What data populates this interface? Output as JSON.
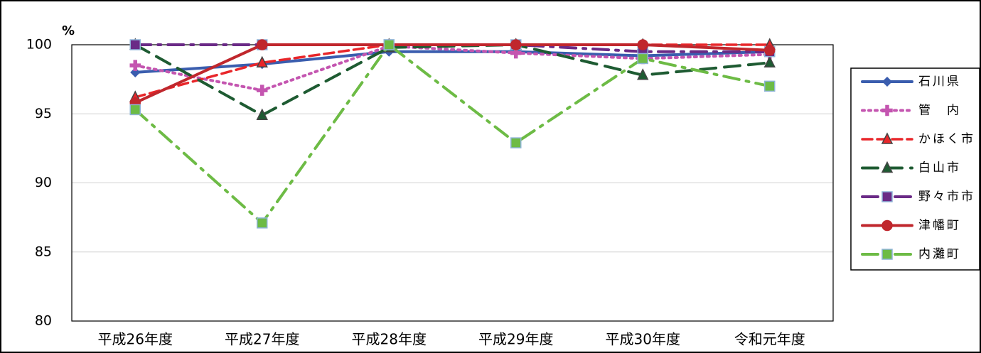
{
  "chart_data": {
    "type": "line",
    "y_label": "%",
    "categories": [
      "平成26年度",
      "平成27年度",
      "平成28年度",
      "平成29年度",
      "平成30年度",
      "令和元年度"
    ],
    "ylim": [
      80,
      100
    ],
    "yticks": [
      80,
      85,
      90,
      95,
      100
    ],
    "grid": true,
    "legend": "right",
    "series": [
      {
        "name": "石川県",
        "color": "#3a5dae",
        "dash": "solid",
        "marker": "diamond",
        "values": [
          98.0,
          98.6,
          99.5,
          99.5,
          99.2,
          99.5
        ]
      },
      {
        "name": "管　内",
        "color": "#c455b0",
        "dash": "dot",
        "marker": "plus",
        "values": [
          98.5,
          96.7,
          99.9,
          99.4,
          99.0,
          99.3
        ]
      },
      {
        "name": "かほく市",
        "color": "#e8262a",
        "dash": "dash",
        "marker": "triangle",
        "values": [
          96.2,
          98.7,
          100,
          100,
          100,
          100
        ]
      },
      {
        "name": "白山市",
        "color": "#1e5b32",
        "dash": "longdash",
        "marker": "triangle",
        "values": [
          100,
          94.9,
          99.8,
          100,
          97.8,
          98.7
        ]
      },
      {
        "name": "野々市市",
        "color": "#6a2a86",
        "dash": "dashdot",
        "marker": "square",
        "values": [
          100,
          100,
          100,
          100,
          99.5,
          99.5
        ]
      },
      {
        "name": "津幡町",
        "color": "#c0272d",
        "dash": "solid",
        "marker": "circle",
        "values": [
          95.8,
          100,
          100,
          100,
          100,
          99.6
        ]
      },
      {
        "name": "内灘町",
        "color": "#6dbb45",
        "dash": "dashdot",
        "marker": "square",
        "values": [
          95.3,
          87.1,
          100,
          92.9,
          99.0,
          97.0
        ]
      }
    ]
  }
}
